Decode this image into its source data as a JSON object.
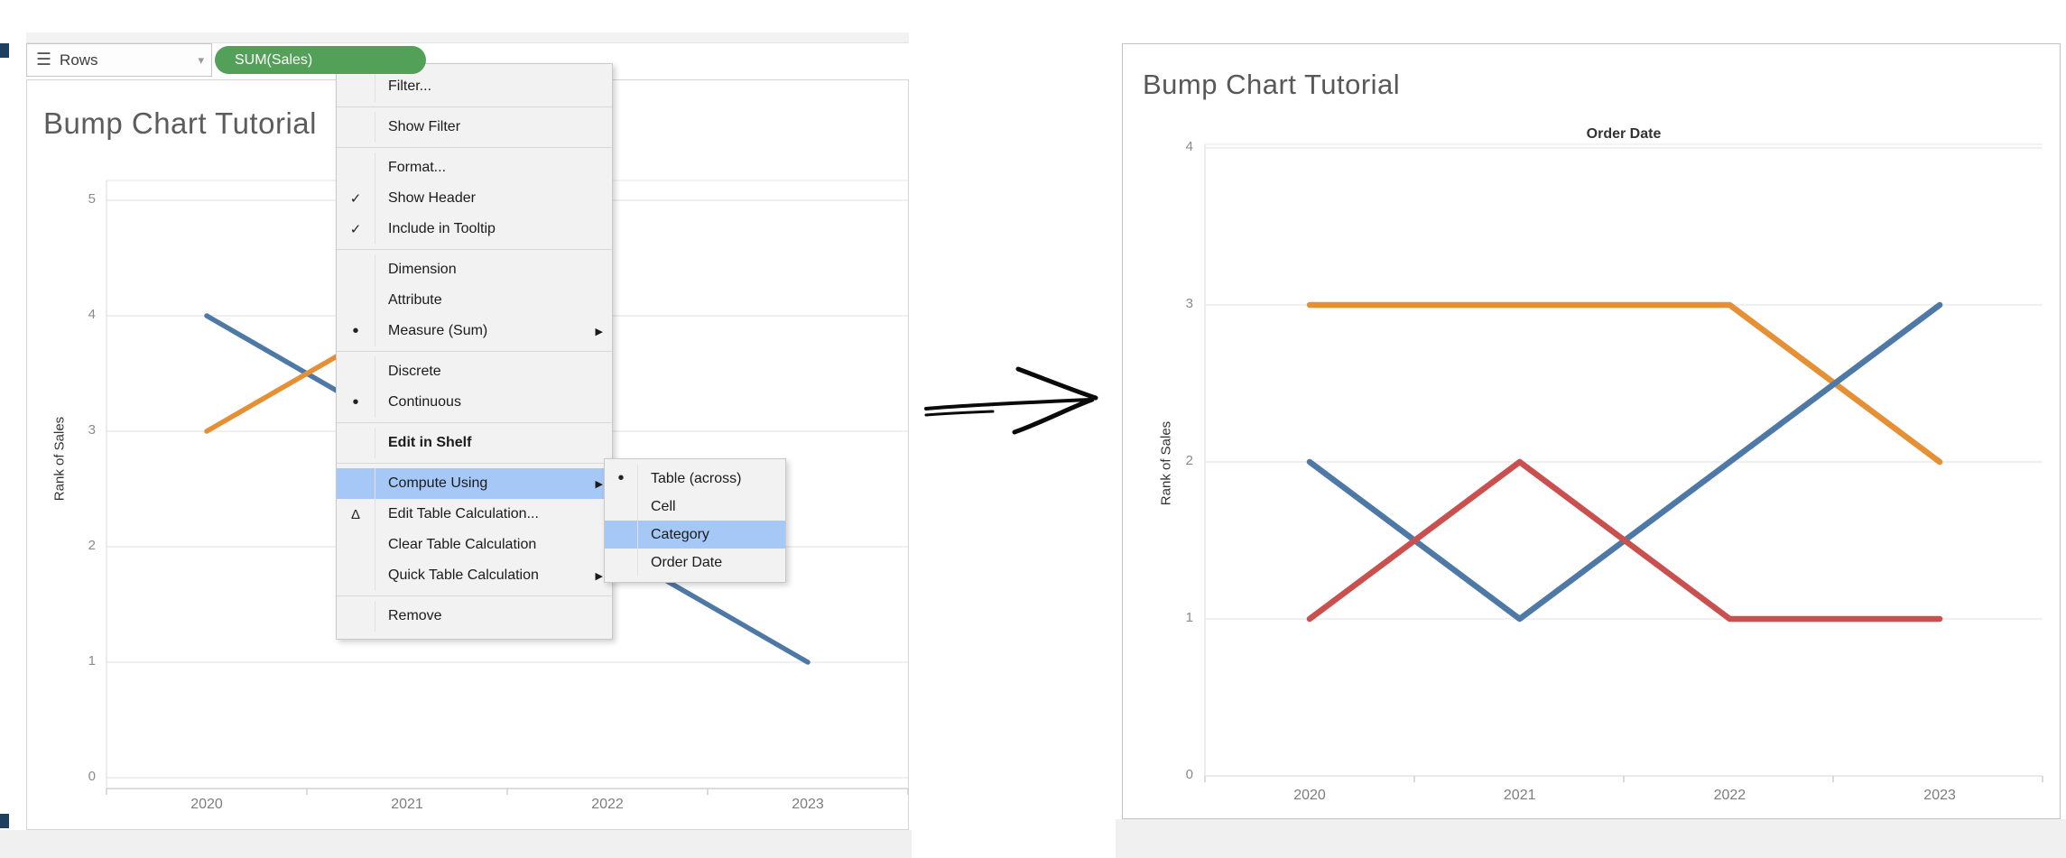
{
  "colors": {
    "line_blue": "#4e79a7",
    "line_orange": "#e59035",
    "line_red": "#c9504f",
    "pill_green": "#53a158",
    "menu_highlight": "#a6c8f7"
  },
  "left_panel": {
    "shelf": {
      "rows_label": "Rows",
      "rows_caret": "▾",
      "rows_list_icon": "☰",
      "pill_label": "SUM(Sales)"
    },
    "menu": {
      "items": [
        {
          "label": "Filter..."
        },
        {
          "type": "separator"
        },
        {
          "label": "Show Filter"
        },
        {
          "type": "separator"
        },
        {
          "label": "Format..."
        },
        {
          "label": "Show Header",
          "check": "✓"
        },
        {
          "label": "Include in Tooltip",
          "check": "✓"
        },
        {
          "type": "separator"
        },
        {
          "label": "Dimension"
        },
        {
          "label": "Attribute"
        },
        {
          "label": "Measure (Sum)",
          "bullet": "•",
          "submenu_arrow": true
        },
        {
          "type": "separator"
        },
        {
          "label": "Discrete"
        },
        {
          "label": "Continuous",
          "bullet": "•"
        },
        {
          "type": "separator"
        },
        {
          "label": "Edit in Shelf",
          "bold": true
        },
        {
          "type": "separator"
        },
        {
          "label": "Compute Using",
          "highlighted": true,
          "submenu_arrow": true
        },
        {
          "label": "Edit Table Calculation...",
          "gutter": "Δ"
        },
        {
          "label": "Clear Table Calculation"
        },
        {
          "label": "Quick Table Calculation",
          "submenu_arrow": true
        },
        {
          "type": "separator"
        },
        {
          "label": "Remove"
        }
      ]
    },
    "submenu": {
      "items": [
        {
          "label": "Table (across)",
          "bullet": "•"
        },
        {
          "label": "Cell"
        },
        {
          "label": "Category",
          "highlighted": true
        },
        {
          "label": "Order Date"
        }
      ]
    }
  },
  "chart_data": [
    {
      "type": "line",
      "id": "left",
      "title": "Bump Chart Tutorial",
      "ylabel": "Rank of Sales",
      "x_ticks": [
        2020,
        2021,
        2022,
        2023
      ],
      "y_ticks": [
        0,
        1,
        2,
        3,
        4,
        5
      ],
      "ylim": [
        0,
        5
      ],
      "grid": true,
      "note": "rank computed Table (across); most marks hidden behind the open context menu",
      "series": [
        {
          "name": "blue-category",
          "color": "line_blue",
          "points": [
            [
              2020,
              4
            ],
            [
              2023,
              1
            ]
          ]
        },
        {
          "name": "orange-category",
          "color": "line_orange",
          "points": [
            [
              2020,
              3
            ],
            [
              2021.4,
              4.4
            ]
          ]
        }
      ]
    },
    {
      "type": "line",
      "id": "right",
      "title": "Bump Chart Tutorial",
      "column_header": "Order Date",
      "ylabel": "Rank of Sales",
      "x_ticks": [
        2020,
        2021,
        2022,
        2023
      ],
      "y_ticks": [
        0,
        1,
        2,
        3,
        4
      ],
      "ylim": [
        0,
        4
      ],
      "grid": true,
      "series": [
        {
          "name": "orange-category",
          "color": "line_orange",
          "points": [
            [
              2020,
              3
            ],
            [
              2022,
              3
            ],
            [
              2023,
              2
            ]
          ]
        },
        {
          "name": "blue-category",
          "color": "line_blue",
          "points": [
            [
              2020,
              2
            ],
            [
              2021,
              1
            ],
            [
              2023,
              3
            ]
          ]
        },
        {
          "name": "red-category",
          "color": "line_red",
          "points": [
            [
              2020,
              1
            ],
            [
              2021,
              2
            ],
            [
              2022,
              1
            ],
            [
              2023,
              1
            ]
          ]
        }
      ]
    }
  ],
  "annotations": {
    "arrow": "hand-drawn-right-arrow"
  }
}
